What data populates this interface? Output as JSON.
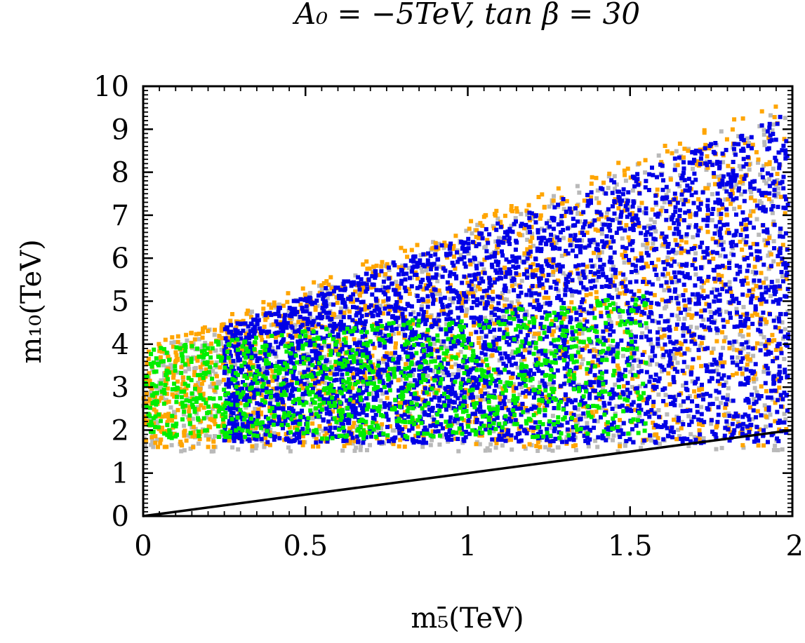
{
  "chart_data": {
    "type": "scatter",
    "title": "A₀ = −5TeV, tan β = 30",
    "xlabel": "m₅̄(TeV)",
    "ylabel": "m₁₀(TeV)",
    "xlim": [
      0,
      2
    ],
    "ylim": [
      0,
      10
    ],
    "x_ticks": [
      "0",
      "0.5",
      "1",
      "1.5",
      "2"
    ],
    "y_ticks": [
      "0",
      "1",
      "2",
      "3",
      "4",
      "5",
      "6",
      "7",
      "8",
      "9",
      "10"
    ],
    "x_tick_values": [
      0,
      0.5,
      1,
      1.5,
      2
    ],
    "y_tick_values": [
      0,
      1,
      2,
      3,
      4,
      5,
      6,
      7,
      8,
      9,
      10
    ],
    "reference_line": {
      "name": "m10 = m5bar",
      "points": [
        [
          0,
          0
        ],
        [
          2,
          2
        ]
      ],
      "color": "#000000"
    },
    "series": [
      {
        "name": "gray",
        "color": "#b9b9b9",
        "region": {
          "x_range": [
            0,
            2
          ],
          "y_low": 1.5,
          "y_high_intercept": 3.8,
          "y_high_slope": 2.9
        },
        "count": 1400
      },
      {
        "name": "orange",
        "color": "#ffa500",
        "region": {
          "x_range": [
            0,
            2
          ],
          "y_low": 1.6,
          "y_high_intercept": 3.9,
          "y_high_slope": 2.95
        },
        "count": 1600
      },
      {
        "name": "blue",
        "color": "#0000e6",
        "region": {
          "x_range": [
            0.25,
            2
          ],
          "y_low": 1.7,
          "y_high_intercept": 3.7,
          "y_high_slope": 2.85
        },
        "count": 3600
      },
      {
        "name": "green",
        "color": "#00ee00",
        "region": {
          "x_range": [
            0,
            1.55
          ],
          "y_low": 1.8,
          "y_high_intercept": 3.9,
          "y_high_slope": 0.8
        },
        "count": 1100
      }
    ]
  }
}
